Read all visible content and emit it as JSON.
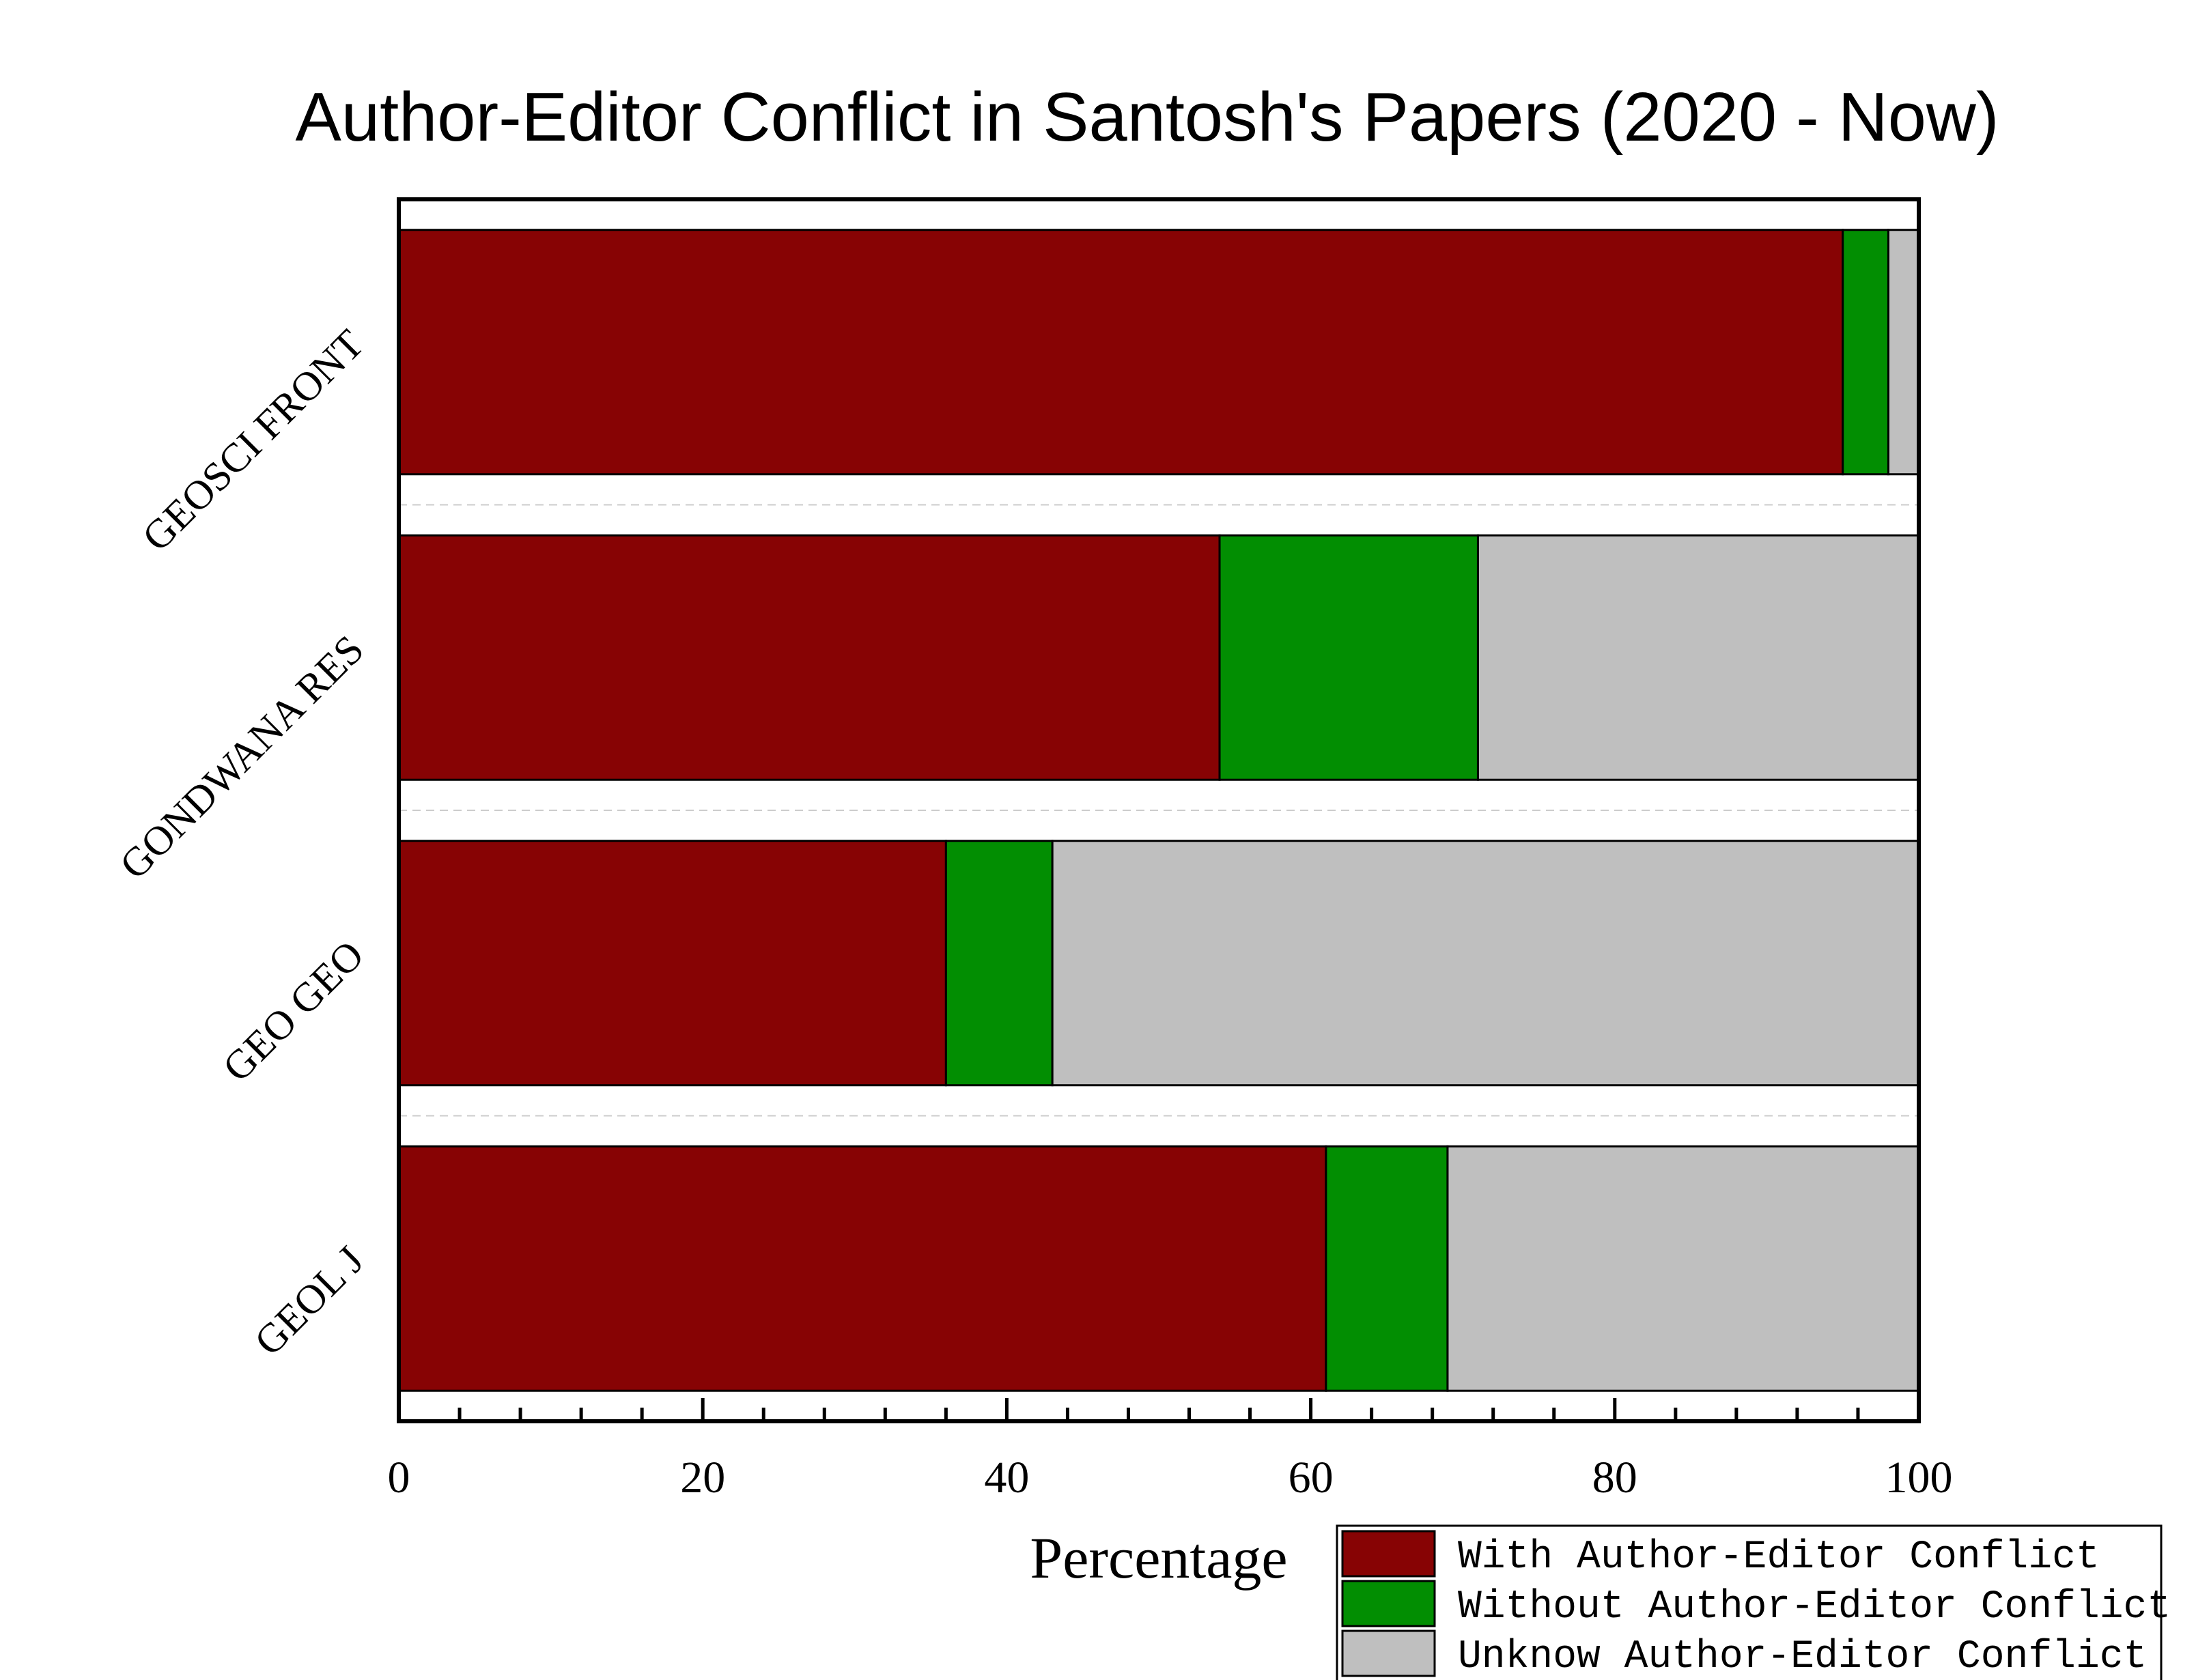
{
  "chart_data": {
    "type": "bar",
    "orientation": "horizontal",
    "stacked": true,
    "title": "Author-Editor Conflict in Santosh's Papers (2020 - Now)",
    "xlabel": "Percentage",
    "ylabel": "",
    "xlim": [
      0,
      100
    ],
    "x_ticks": [
      "0",
      "20",
      "40",
      "60",
      "80",
      "100"
    ],
    "categories": [
      "GEOSCI FRONT",
      "GONDWANA RES",
      "GEO GEO",
      "GEOL J"
    ],
    "series": [
      {
        "name": "With Author-Editor Conflict",
        "color": "#870304",
        "values": [
          95,
          54,
          36,
          61
        ]
      },
      {
        "name": "Without Author-Editor Conflict",
        "color": "#028E02",
        "values": [
          3,
          17,
          7,
          8
        ]
      },
      {
        "name": "Unknow Author-Editor Conflict",
        "color": "#BFBFBF",
        "values": [
          2,
          29,
          57,
          31
        ]
      }
    ],
    "grid": "horizontal dashed between categories",
    "legend_position": "bottom-right"
  }
}
